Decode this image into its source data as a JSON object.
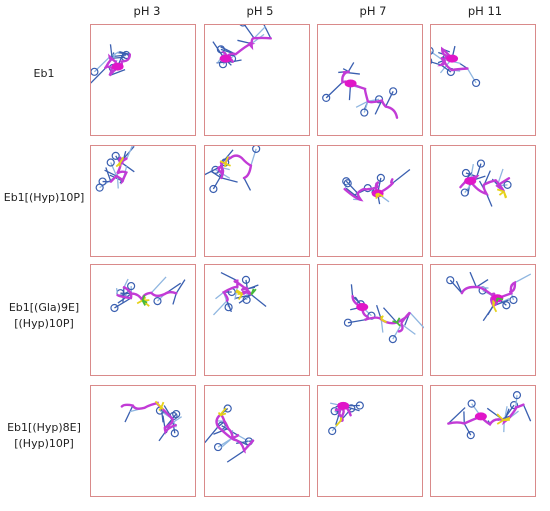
{
  "columns": [
    "pH 3",
    "pH 5",
    "pH 7",
    "pH 11"
  ],
  "rows": [
    {
      "label_lines": [
        "Eb1"
      ]
    },
    {
      "label_lines": [
        "Eb1[(Hyp)10P]"
      ]
    },
    {
      "label_lines": [
        "Eb1[(Gla)9E]",
        "[(Hyp)10P]"
      ]
    },
    {
      "label_lines": [
        "Eb1[(Hyp)8E]",
        "[(Hyp)10P]"
      ]
    }
  ],
  "colors": {
    "border": "#d98a8a",
    "backbone": "#c23bd6",
    "helix": "#e016c8",
    "sidechain_blue": "#3a5fb0",
    "sidechain_light": "#8fb6e0",
    "sulfur_yellow": "#e6d21a",
    "gla_green": "#46b83a"
  }
}
